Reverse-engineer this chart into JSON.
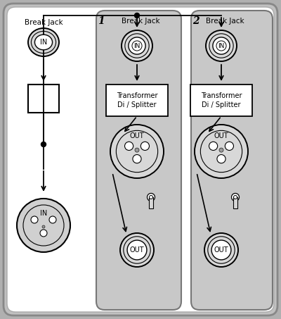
{
  "bg_color": "#b0b0b0",
  "panel_gray": "#c8c8c8",
  "white": "#ffffff",
  "black": "#000000",
  "left_panel": {
    "break_jack_label": "Break Jack",
    "in_top_label": "IN",
    "in_bottom_label": "IN"
  },
  "right_panels": [
    {
      "number": "1",
      "break_jack_label": "Break Jack",
      "in_label": "IN",
      "transformer_label": "Transformer\nDi / Splitter",
      "out_xlr_label": "OUT",
      "out_jack_label": "OUT"
    },
    {
      "number": "2",
      "break_jack_label": "Break Jack",
      "in_label": "IN",
      "transformer_label": "Transformer\nDi / Splitter",
      "out_xlr_label": "OUT",
      "out_jack_label": "OUT"
    }
  ]
}
